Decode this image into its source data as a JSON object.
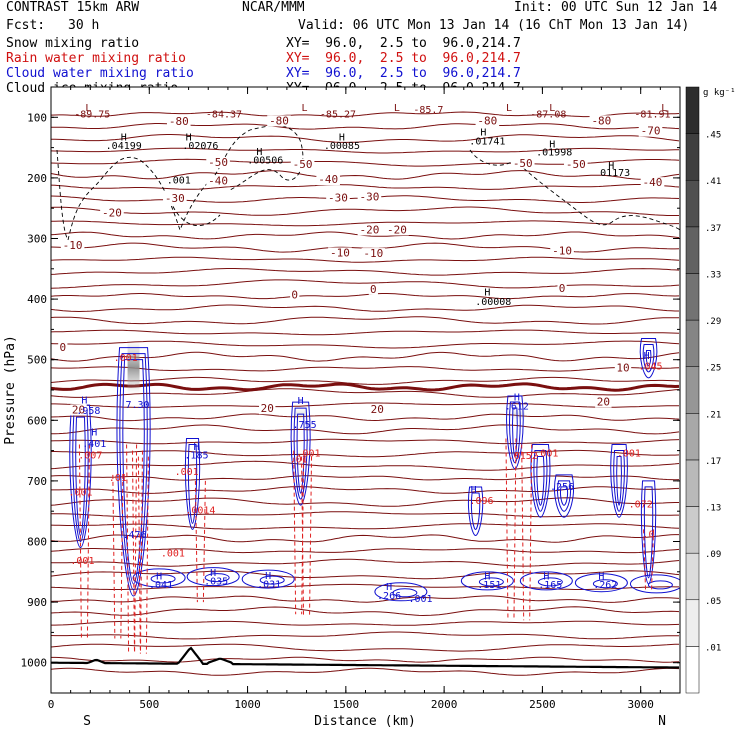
{
  "header": {
    "model": "CONTRAST 15km ARW",
    "org": "NCAR/MMM",
    "init": "Init: 00 UTC Sun 12 Jan 14",
    "fcst_label": "Fcst:",
    "fcst_value": "30 h",
    "valid": "Valid: 06 UTC Mon 13 Jan 14 (16 ChT Mon 13 Jan 14)"
  },
  "legend": [
    {
      "label": "Snow mixing ratio",
      "xy": "XY=  96.0,  2.5 to  96.0,214.7",
      "color": "#000000"
    },
    {
      "label": "Rain water mixing ratio",
      "xy": "XY=  96.0,  2.5 to  96.0,214.7",
      "color": "#d01010"
    },
    {
      "label": "Cloud water mixing ratio",
      "xy": "XY=  96.0,  2.5 to  96.0,214.7",
      "color": "#1010d0"
    },
    {
      "label": "Cloud ice mixing ratio",
      "xy": "XY=  96.0,  2.5 to  96.0,214.7",
      "color": "#000000"
    }
  ],
  "colors": {
    "temperature": "#7a0f0f",
    "cloud_water": "#1010d0",
    "rain": "#e02020",
    "snow": "#000000",
    "terrain": "#000000"
  },
  "chart_data": {
    "type": "cross-section",
    "xlabel": "Distance (km)",
    "ylabel": "Pressure (hPa)",
    "xlim": [
      0,
      3200
    ],
    "ylim": [
      1050,
      50
    ],
    "x_ticks": [
      0,
      500,
      1000,
      1500,
      2000,
      2500,
      3000
    ],
    "y_ticks": [
      100,
      200,
      300,
      400,
      500,
      600,
      700,
      800,
      900,
      1000
    ],
    "end_labels": {
      "left": "S",
      "right": "N"
    },
    "colorbar": {
      "unit": "g kg⁻¹",
      "levels": [
        0.01,
        0.05,
        0.09,
        0.13,
        0.17,
        0.21,
        0.25,
        0.29,
        0.33,
        0.37,
        0.41,
        0.45
      ],
      "labels": [
        ".01",
        ".05",
        ".09",
        ".13",
        ".17",
        ".21",
        ".25",
        ".29",
        ".33",
        ".37",
        ".41",
        ".45"
      ]
    },
    "temperature_contour_labels": [
      {
        "x": 650,
        "p": 111,
        "text": "-80"
      },
      {
        "x": 1160,
        "p": 110,
        "text": "-80"
      },
      {
        "x": 2220,
        "p": 110,
        "text": "-80"
      },
      {
        "x": 2800,
        "p": 110,
        "text": "-80"
      },
      {
        "x": 3050,
        "p": 127,
        "text": "-70"
      },
      {
        "x": 850,
        "p": 179,
        "text": "-50"
      },
      {
        "x": 1280,
        "p": 182,
        "text": "-50"
      },
      {
        "x": 2400,
        "p": 180,
        "text": "-50"
      },
      {
        "x": 2670,
        "p": 182,
        "text": "-50"
      },
      {
        "x": 850,
        "p": 209,
        "text": "-40"
      },
      {
        "x": 1410,
        "p": 207,
        "text": "-40"
      },
      {
        "x": 3060,
        "p": 212,
        "text": "-40"
      },
      {
        "x": 630,
        "p": 238,
        "text": "-30"
      },
      {
        "x": 1460,
        "p": 237,
        "text": "-30"
      },
      {
        "x": 1620,
        "p": 236,
        "text": "-30"
      },
      {
        "x": 310,
        "p": 262,
        "text": "-20"
      },
      {
        "x": 1620,
        "p": 290,
        "text": "-20"
      },
      {
        "x": 1760,
        "p": 290,
        "text": "-20"
      },
      {
        "x": 110,
        "p": 316,
        "text": "-10"
      },
      {
        "x": 1470,
        "p": 328,
        "text": "-10"
      },
      {
        "x": 1640,
        "p": 329,
        "text": "-10"
      },
      {
        "x": 2600,
        "p": 325,
        "text": "-10"
      },
      {
        "x": 1640,
        "p": 388,
        "text": "0"
      },
      {
        "x": 2600,
        "p": 387,
        "text": "0"
      },
      {
        "x": 1240,
        "p": 397,
        "text": "0"
      },
      {
        "x": 60,
        "p": 484,
        "text": "0"
      },
      {
        "x": 2910,
        "p": 518,
        "text": "10"
      },
      {
        "x": 140,
        "p": 587,
        "text": "20"
      },
      {
        "x": 1100,
        "p": 585,
        "text": "20"
      },
      {
        "x": 1660,
        "p": 586,
        "text": "20"
      },
      {
        "x": 2810,
        "p": 574,
        "text": "20"
      }
    ],
    "extrema": [
      {
        "x": 190,
        "p": 90,
        "text": "L"
      },
      {
        "x": 1290,
        "p": 90,
        "text": "L"
      },
      {
        "x": 1760,
        "p": 90,
        "text": "L"
      },
      {
        "x": 2330,
        "p": 90,
        "text": "L"
      },
      {
        "x": 2550,
        "p": 90,
        "text": "L"
      },
      {
        "x": 3120,
        "p": 90,
        "text": "L"
      },
      {
        "x": 210,
        "p": 100,
        "text": "-89.75"
      },
      {
        "x": 880,
        "p": 100,
        "text": "-84.37"
      },
      {
        "x": 1460,
        "p": 100,
        "text": "-85.27"
      },
      {
        "x": 1920,
        "p": 93,
        "text": "-85.7"
      },
      {
        "x": 2530,
        "p": 100,
        "text": "-87.08"
      },
      {
        "x": 3060,
        "p": 100,
        "text": "-81.91"
      },
      {
        "x": 370,
        "p": 138,
        "text": "H"
      },
      {
        "x": 370,
        "p": 152,
        "text": ".04199"
      },
      {
        "x": 700,
        "p": 138,
        "text": "H"
      },
      {
        "x": 760,
        "p": 152,
        "text": ".02076"
      },
      {
        "x": 1480,
        "p": 138,
        "text": "H"
      },
      {
        "x": 1480,
        "p": 152,
        "text": ".00085"
      },
      {
        "x": 2200,
        "p": 130,
        "text": "H"
      },
      {
        "x": 2220,
        "p": 145,
        "text": ".01741"
      },
      {
        "x": 2550,
        "p": 150,
        "text": "H"
      },
      {
        "x": 2560,
        "p": 163,
        "text": ".01998"
      },
      {
        "x": 1060,
        "p": 162,
        "text": "H"
      },
      {
        "x": 1090,
        "p": 176,
        "text": ".00506"
      },
      {
        "x": 2850,
        "p": 185,
        "text": "H"
      },
      {
        "x": 2870,
        "p": 197,
        "text": "01173"
      },
      {
        "x": 650,
        "p": 209,
        "text": ".001"
      },
      {
        "x": 2220,
        "p": 394,
        "text": "H"
      },
      {
        "x": 2250,
        "p": 410,
        "text": ".00008"
      },
      {
        "x": 380,
        "p": 502,
        "text": ".001"
      },
      {
        "x": 3030,
        "p": 499,
        "text": "H"
      },
      {
        "x": 3050,
        "p": 516,
        "text": ".045"
      },
      {
        "x": 170,
        "p": 572,
        "text": "H"
      },
      {
        "x": 190,
        "p": 590,
        "text": ".958"
      },
      {
        "x": 440,
        "p": 580,
        "text": "7.30"
      },
      {
        "x": 1270,
        "p": 573,
        "text": "H"
      },
      {
        "x": 2370,
        "p": 567,
        "text": "H"
      },
      {
        "x": 2370,
        "p": 582,
        "text": ".612"
      },
      {
        "x": 1290,
        "p": 613,
        "text": ".755"
      },
      {
        "x": 220,
        "p": 625,
        "text": "H"
      },
      {
        "x": 220,
        "p": 644,
        "text": ".401"
      },
      {
        "x": 740,
        "p": 649,
        "text": "H"
      },
      {
        "x": 740,
        "p": 663,
        "text": ".185"
      },
      {
        "x": 1310,
        "p": 660,
        "text": ".001"
      },
      {
        "x": 2520,
        "p": 660,
        "text": ".001"
      },
      {
        "x": 2940,
        "p": 660,
        "text": ".001"
      },
      {
        "x": 200,
        "p": 663,
        "text": ".007"
      },
      {
        "x": 2400,
        "p": 664,
        "text": ".0152"
      },
      {
        "x": 1260,
        "p": 670,
        "text": ".01"
      },
      {
        "x": 690,
        "p": 690,
        "text": ".001"
      },
      {
        "x": 2600,
        "p": 715,
        "text": ".256"
      },
      {
        "x": 340,
        "p": 700,
        "text": ".01"
      },
      {
        "x": 2150,
        "p": 720,
        "text": "H"
      },
      {
        "x": 2190,
        "p": 738,
        "text": ".096"
      },
      {
        "x": 150,
        "p": 724,
        "text": ".001"
      },
      {
        "x": 3000,
        "p": 744,
        "text": ".072"
      },
      {
        "x": 760,
        "p": 754,
        "text": ".0014"
      },
      {
        "x": 425,
        "p": 794,
        "text": ".476"
      },
      {
        "x": 3040,
        "p": 793,
        "text": ".0"
      },
      {
        "x": 620,
        "p": 825,
        "text": ".001"
      },
      {
        "x": 160,
        "p": 837,
        "text": ".001"
      },
      {
        "x": 550,
        "p": 863,
        "text": "H"
      },
      {
        "x": 560,
        "p": 877,
        "text": ".041"
      },
      {
        "x": 825,
        "p": 857,
        "text": "H"
      },
      {
        "x": 840,
        "p": 871,
        "text": ".035"
      },
      {
        "x": 1105,
        "p": 862,
        "text": "H"
      },
      {
        "x": 1110,
        "p": 876,
        "text": ".031"
      },
      {
        "x": 1720,
        "p": 880,
        "text": "H"
      },
      {
        "x": 1720,
        "p": 895,
        "text": ".266"
      },
      {
        "x": 1880,
        "p": 900,
        "text": ".001"
      },
      {
        "x": 2220,
        "p": 863,
        "text": "H"
      },
      {
        "x": 2230,
        "p": 877,
        "text": ".151"
      },
      {
        "x": 2520,
        "p": 863,
        "text": "H"
      },
      {
        "x": 2540,
        "p": 877,
        "text": ".165"
      },
      {
        "x": 2800,
        "p": 863,
        "text": "H"
      },
      {
        "x": 2820,
        "p": 877,
        "text": ".262"
      }
    ],
    "freezing_level_hPa": 545,
    "updraft_columns": [
      {
        "x": 420,
        "p_top": 470,
        "p_bottom": 555,
        "max_g_per_kg": 0.45
      },
      {
        "x": 1270,
        "p_top": 580,
        "p_bottom": 600,
        "max_g_per_kg": 0.05
      },
      {
        "x": 2380,
        "p_top": 580,
        "p_bottom": 600,
        "max_g_per_kg": 0.05
      }
    ],
    "terrain_peaks": [
      {
        "x": 710,
        "p": 975
      },
      {
        "x": 860,
        "p": 993
      }
    ]
  }
}
